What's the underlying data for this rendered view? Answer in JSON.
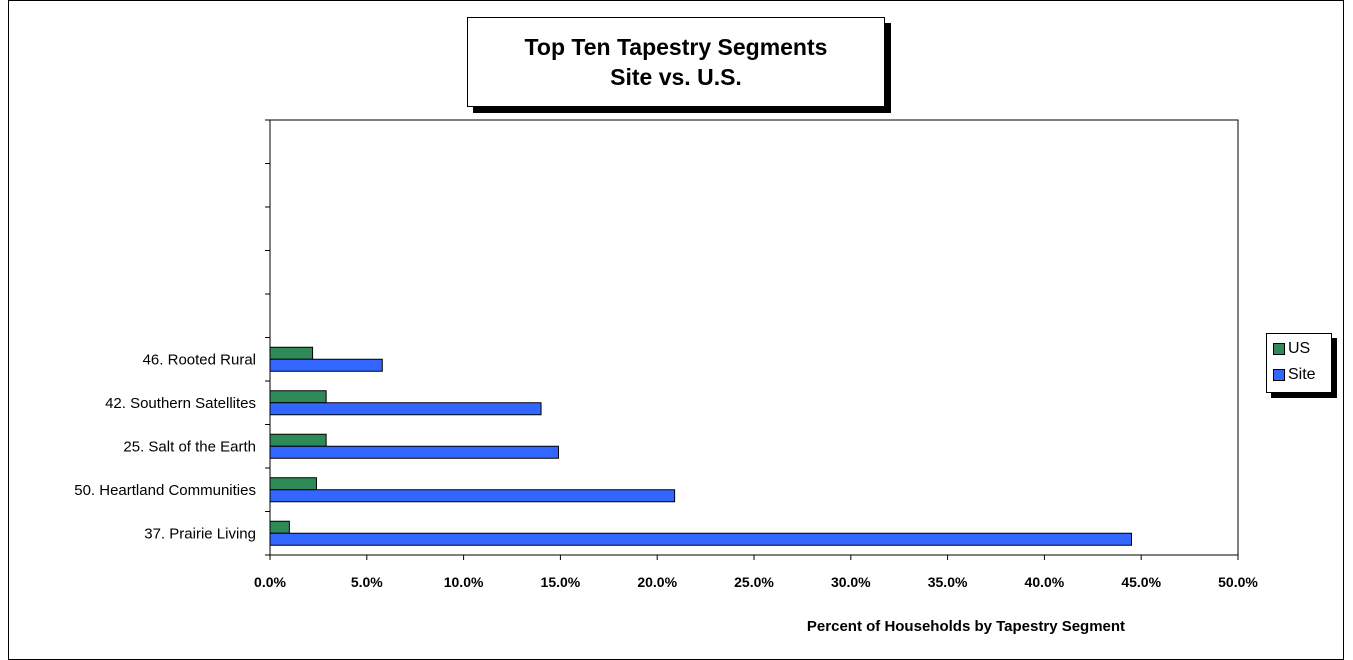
{
  "chart_data": {
    "type": "bar",
    "orientation": "horizontal",
    "title": "Top Ten Tapestry Segments",
    "subtitle": "Site vs. U.S.",
    "xlabel": "Percent of Households by Tapestry Segment",
    "ylabel": "",
    "xlim": [
      0,
      50
    ],
    "x_ticks": [
      "0.0%",
      "5.0%",
      "10.0%",
      "15.0%",
      "20.0%",
      "25.0%",
      "30.0%",
      "35.0%",
      "40.0%",
      "45.0%",
      "50.0%"
    ],
    "categories": [
      "37. Prairie Living",
      "50. Heartland Communities",
      "25. Salt of the Earth",
      "42. Southern Satellites",
      "46. Rooted Rural",
      "",
      "",
      "",
      "",
      ""
    ],
    "series": [
      {
        "name": "US",
        "color": "#2e8b57",
        "values": [
          1.0,
          2.4,
          2.9,
          2.9,
          2.2,
          null,
          null,
          null,
          null,
          null
        ]
      },
      {
        "name": "Site",
        "color": "#3366ff",
        "values": [
          44.5,
          20.9,
          14.9,
          14.0,
          5.8,
          null,
          null,
          null,
          null,
          null
        ]
      }
    ],
    "legend": "right",
    "grid": false
  }
}
